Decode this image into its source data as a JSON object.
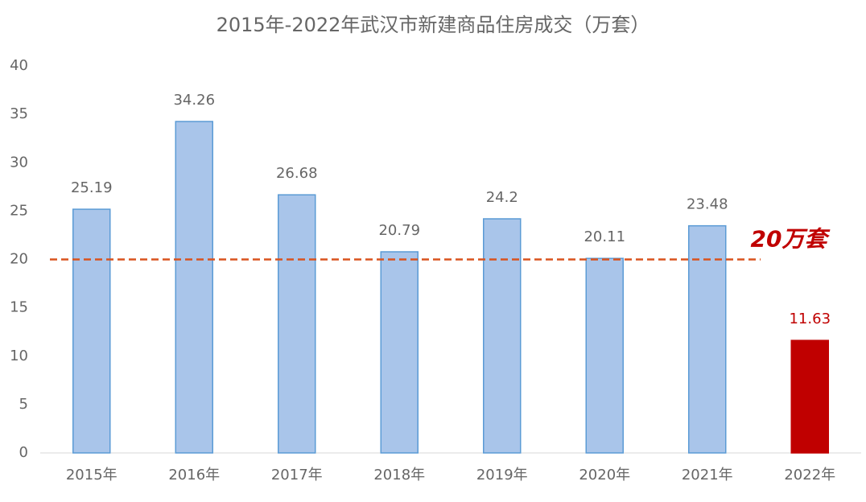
{
  "chart_data": {
    "type": "bar",
    "title": "2015年-2022年武汉市新建商品住房成交（万套）",
    "categories": [
      "2015年",
      "2016年",
      "2017年",
      "2018年",
      "2019年",
      "2020年",
      "2021年",
      "2022年"
    ],
    "values": [
      25.19,
      34.26,
      26.68,
      20.79,
      24.2,
      20.11,
      23.48,
      11.63
    ],
    "colors": [
      "#a9c5ea",
      "#a9c5ea",
      "#a9c5ea",
      "#a9c5ea",
      "#a9c5ea",
      "#a9c5ea",
      "#a9c5ea",
      "#c00000"
    ],
    "value_label_colors": [
      "#666666",
      "#666666",
      "#666666",
      "#666666",
      "#666666",
      "#666666",
      "#666666",
      "#c00000"
    ],
    "ylim": [
      0,
      40
    ],
    "yticks": [
      0,
      5,
      10,
      15,
      20,
      25,
      30,
      35,
      40
    ],
    "grid": false,
    "reference_line": {
      "value": 20,
      "label": "20万套",
      "color": "#d9531e",
      "label_color": "#c00000"
    }
  }
}
